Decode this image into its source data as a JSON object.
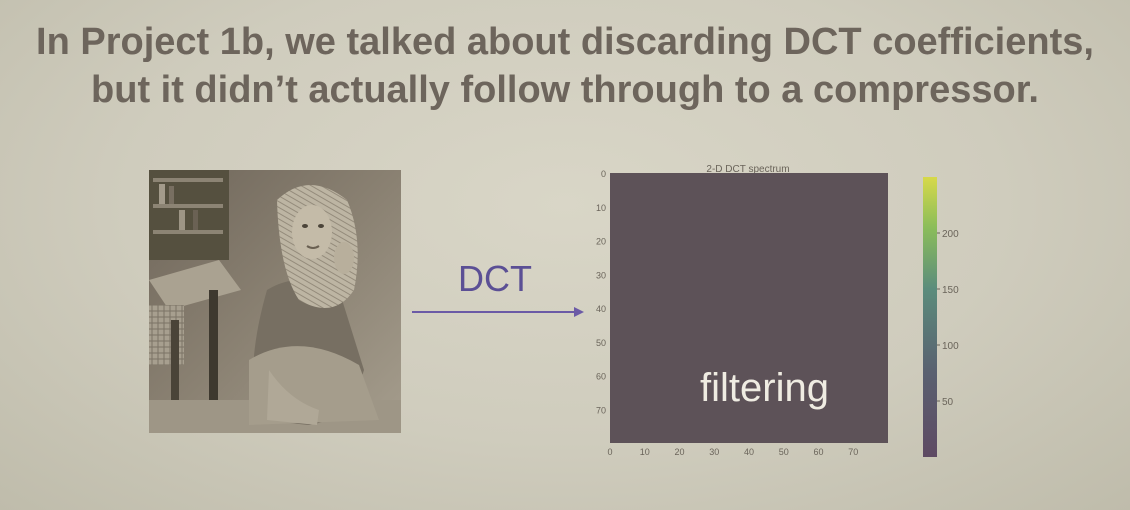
{
  "slide": {
    "title_line1": "In Project 1b, we talked about discarding DCT coefficients,",
    "title_line2": "but it didn’t actually follow through to a compressor.",
    "dct_label": "DCT",
    "filtering_label": "filtering"
  },
  "chart_data": {
    "type": "heatmap",
    "title": "2-D DCT spectrum",
    "x_ticks": [
      "0",
      "10",
      "20",
      "30",
      "40",
      "50",
      "60",
      "70"
    ],
    "y_ticks": [
      "0",
      "10",
      "20",
      "30",
      "40",
      "50",
      "60",
      "70"
    ],
    "colorbar_ticks": [
      "50",
      "100",
      "150",
      "200"
    ],
    "colorbar_range": [
      0,
      250
    ],
    "fill_color": "#5d5258",
    "colormap": [
      "#5e4a63",
      "#5a6070",
      "#5b8c7c",
      "#8bbd5a",
      "#d7d94a"
    ]
  },
  "colors": {
    "title": "#6d655c",
    "dct_label": "#5b4f95",
    "arrow": "#6b5aa6",
    "filtering": "#efece2"
  }
}
